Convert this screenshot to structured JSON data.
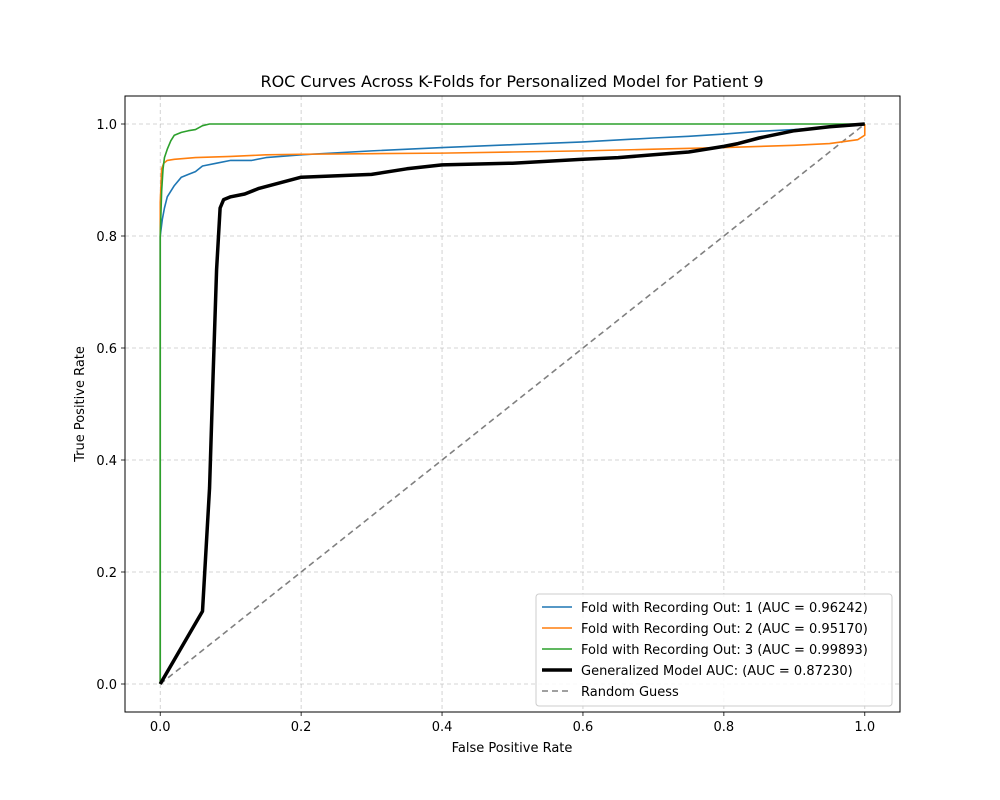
{
  "chart_data": {
    "type": "line",
    "title": "ROC Curves Across K-Folds for Personalized Model for Patient 9",
    "xlabel": "False Positive Rate",
    "ylabel": "True Positive Rate",
    "xlim": [
      -0.05,
      1.05
    ],
    "ylim": [
      -0.05,
      1.05
    ],
    "xticks": [
      "0.0",
      "0.2",
      "0.4",
      "0.6",
      "0.8",
      "1.0"
    ],
    "yticks": [
      "0.0",
      "0.2",
      "0.4",
      "0.6",
      "0.8",
      "1.0"
    ],
    "grid": true,
    "legend_position": "lower-right",
    "series": [
      {
        "name": "Fold with Recording Out: 1 (AUC = 0.96242)",
        "color": "#1f77b4",
        "style": "solid",
        "x": [
          0,
          0,
          0.003,
          0.006,
          0.01,
          0.015,
          0.02,
          0.03,
          0.04,
          0.05,
          0.06,
          0.08,
          0.1,
          0.13,
          0.15,
          0.2,
          0.3,
          0.4,
          0.5,
          0.6,
          0.7,
          0.75,
          0.8,
          0.85,
          0.9,
          0.95,
          1.0
        ],
        "y": [
          0,
          0.8,
          0.83,
          0.85,
          0.87,
          0.88,
          0.89,
          0.905,
          0.91,
          0.915,
          0.925,
          0.93,
          0.935,
          0.935,
          0.94,
          0.945,
          0.952,
          0.958,
          0.963,
          0.968,
          0.975,
          0.978,
          0.982,
          0.987,
          0.99,
          0.995,
          1.0
        ]
      },
      {
        "name": "Fold with Recording Out: 2 (AUC = 0.95170)",
        "color": "#ff7f0e",
        "style": "solid",
        "x": [
          0,
          0,
          0.002,
          0.005,
          0.01,
          0.02,
          0.05,
          0.1,
          0.15,
          0.2,
          0.3,
          0.4,
          0.5,
          0.6,
          0.7,
          0.8,
          0.9,
          0.95,
          0.99,
          1.0,
          1.0
        ],
        "y": [
          0,
          0.86,
          0.92,
          0.93,
          0.935,
          0.937,
          0.94,
          0.942,
          0.945,
          0.946,
          0.947,
          0.948,
          0.95,
          0.952,
          0.955,
          0.958,
          0.962,
          0.965,
          0.972,
          0.98,
          1.0
        ]
      },
      {
        "name": "Fold with Recording Out: 3 (AUC = 0.99893)",
        "color": "#2ca02c",
        "style": "solid",
        "x": [
          0,
          0,
          0.002,
          0.004,
          0.006,
          0.01,
          0.015,
          0.02,
          0.03,
          0.04,
          0.05,
          0.06,
          0.07,
          0.1,
          0.5,
          1.0
        ],
        "y": [
          0,
          0.8,
          0.88,
          0.92,
          0.94,
          0.955,
          0.97,
          0.98,
          0.985,
          0.988,
          0.99,
          0.997,
          1.0,
          1.0,
          1.0,
          1.0
        ]
      },
      {
        "name": "Generalized Model AUC: (AUC = 0.87230)",
        "color": "#000000",
        "style": "thick",
        "x": [
          0,
          0.06,
          0.07,
          0.075,
          0.08,
          0.085,
          0.09,
          0.1,
          0.12,
          0.14,
          0.17,
          0.2,
          0.3,
          0.35,
          0.4,
          0.5,
          0.6,
          0.65,
          0.7,
          0.75,
          0.8,
          0.82,
          0.85,
          0.9,
          0.95,
          1.0
        ],
        "y": [
          0,
          0.13,
          0.35,
          0.55,
          0.74,
          0.85,
          0.865,
          0.87,
          0.875,
          0.885,
          0.895,
          0.905,
          0.91,
          0.92,
          0.927,
          0.93,
          0.937,
          0.94,
          0.945,
          0.95,
          0.96,
          0.965,
          0.975,
          0.988,
          0.995,
          1.0
        ]
      },
      {
        "name": "Random Guess",
        "color": "#808080",
        "style": "dashed",
        "x": [
          0,
          1
        ],
        "y": [
          0,
          1
        ]
      }
    ]
  }
}
